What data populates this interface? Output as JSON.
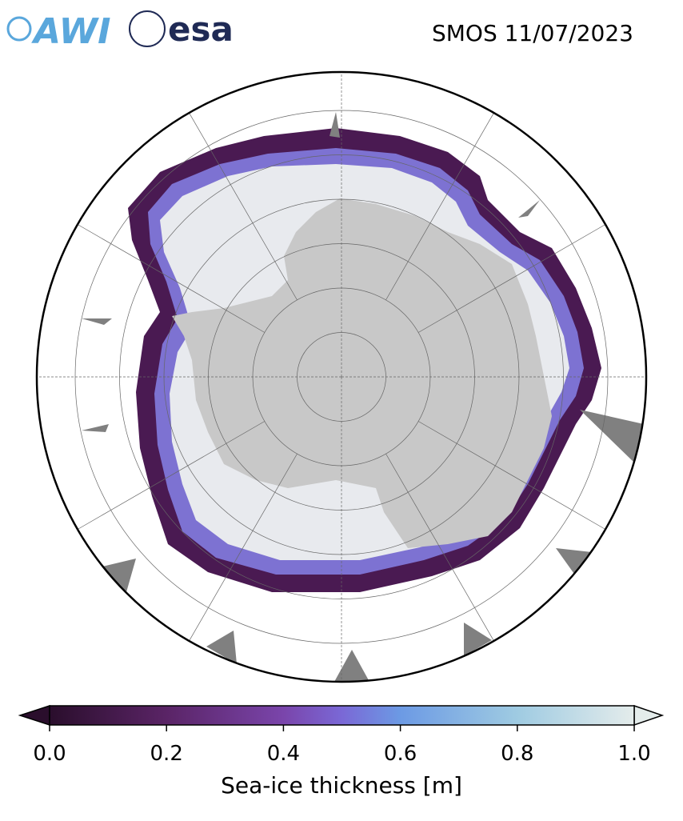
{
  "header": {
    "logos": [
      "AWI",
      "esa"
    ],
    "title": "SMOS 11/07/2023"
  },
  "colorbar": {
    "lim": [
      0,
      1
    ],
    "ticks": [
      {
        "value": 0,
        "label": "0.0"
      },
      {
        "value": 0.2,
        "label": "0.2"
      },
      {
        "value": 0.4,
        "label": "0.4"
      },
      {
        "value": 0.6,
        "label": "0.6"
      },
      {
        "value": 0.8,
        "label": "0.8"
      },
      {
        "value": 1,
        "label": "1.0"
      }
    ],
    "label": "Sea-ice thickness [m]"
  }
}
